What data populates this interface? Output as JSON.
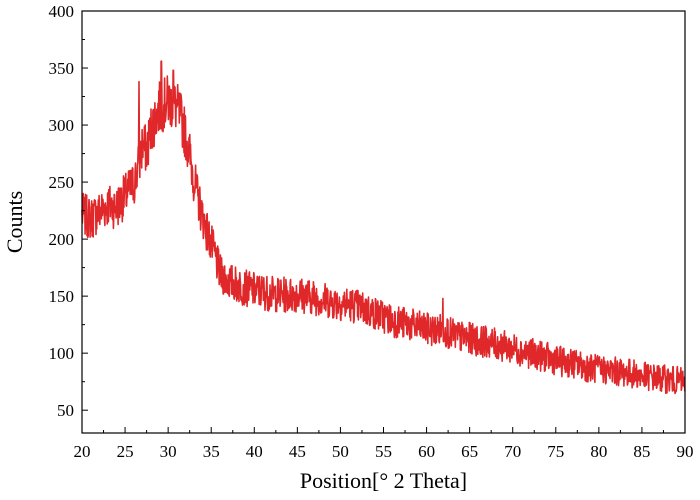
{
  "chart_data": {
    "type": "line",
    "title": "",
    "xlabel": "Position[° 2 Theta]",
    "ylabel": "Counts",
    "xlim": [
      20,
      90
    ],
    "ylim": [
      30,
      400
    ],
    "x_ticks": [
      20,
      25,
      30,
      35,
      40,
      45,
      50,
      55,
      60,
      65,
      70,
      75,
      80,
      85,
      90
    ],
    "y_ticks": [
      50,
      100,
      150,
      200,
      250,
      300,
      350,
      400
    ],
    "grid": false,
    "legend": "none",
    "series": [
      {
        "color": "#e0282a",
        "x": [
          20,
          21,
          22,
          23,
          24,
          25,
          26,
          26.5,
          27,
          27.5,
          28,
          28.5,
          29,
          29.5,
          30,
          30.5,
          31,
          31.5,
          32,
          32.5,
          33,
          33.5,
          34,
          34.5,
          35,
          35.5,
          36,
          37,
          38,
          39,
          40,
          41,
          42,
          43,
          44,
          45,
          46,
          47,
          48,
          49,
          50,
          51,
          52,
          53,
          54,
          55,
          56,
          57,
          58,
          59,
          60,
          61,
          62,
          63,
          64,
          65,
          66,
          67,
          68,
          69,
          70,
          71,
          72,
          73,
          74,
          75,
          76,
          77,
          78,
          79,
          80,
          81,
          82,
          83,
          84,
          85,
          86,
          87,
          88,
          89,
          90
        ],
        "values": [
          222,
          218,
          224,
          230,
          228,
          238,
          248,
          262,
          282,
          278,
          296,
          306,
          315,
          318,
          321,
          319,
          315,
          306,
          292,
          274,
          252,
          234,
          220,
          207,
          196,
          184,
          170,
          163,
          160,
          157,
          155,
          154,
          152,
          151,
          151,
          152,
          150,
          149,
          147,
          145,
          144,
          143,
          141,
          138,
          135,
          132,
          129,
          127,
          125,
          123,
          121,
          120,
          121,
          116,
          114,
          113,
          111,
          110,
          108,
          106,
          104,
          102,
          100,
          98,
          96,
          94,
          92,
          91,
          89,
          87,
          86,
          85,
          84,
          83,
          82,
          80,
          79,
          78,
          77,
          76,
          75
        ],
        "noise_amplitude": 18,
        "spikes": [
          {
            "x": 26.6,
            "y": 338
          },
          {
            "x": 29.2,
            "y": 356
          },
          {
            "x": 30.6,
            "y": 348
          },
          {
            "x": 61.9,
            "y": 148
          }
        ]
      }
    ]
  }
}
